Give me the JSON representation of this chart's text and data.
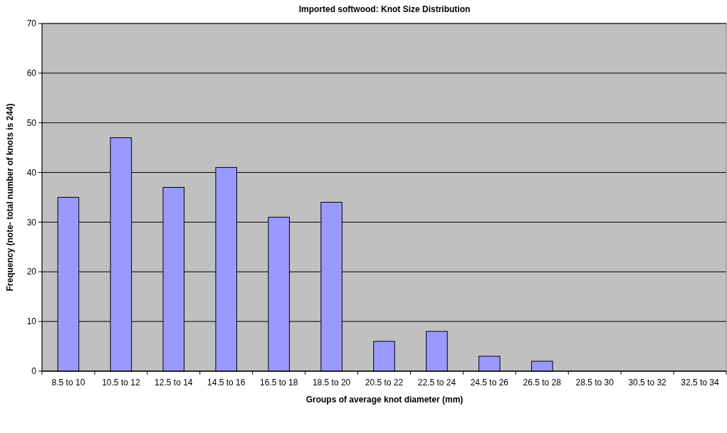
{
  "chart_data": {
    "type": "bar",
    "title": "Imported softwood:  Knot Size Distribution",
    "xlabel": "Groups of average knot diameter (mm)",
    "ylabel": "Frequency (note- total number of knots is 244)",
    "categories": [
      "8.5 to 10",
      "10.5 to 12",
      "12.5 to 14",
      "14.5 to 16",
      "16.5 to 18",
      "18.5 to 20",
      "20.5 to 22",
      "22.5 to 24",
      "24.5 to 26",
      "26.5 to 28",
      "28.5 to 30",
      "30.5 to 32",
      "32.5 to 34"
    ],
    "values": [
      35,
      47,
      37,
      41,
      31,
      34,
      6,
      8,
      3,
      2,
      0,
      0,
      0
    ],
    "color": "#9999ff",
    "ylim": [
      0,
      70
    ],
    "yticks": [
      0,
      10,
      20,
      30,
      40,
      50,
      60,
      70
    ],
    "grid": "y"
  }
}
